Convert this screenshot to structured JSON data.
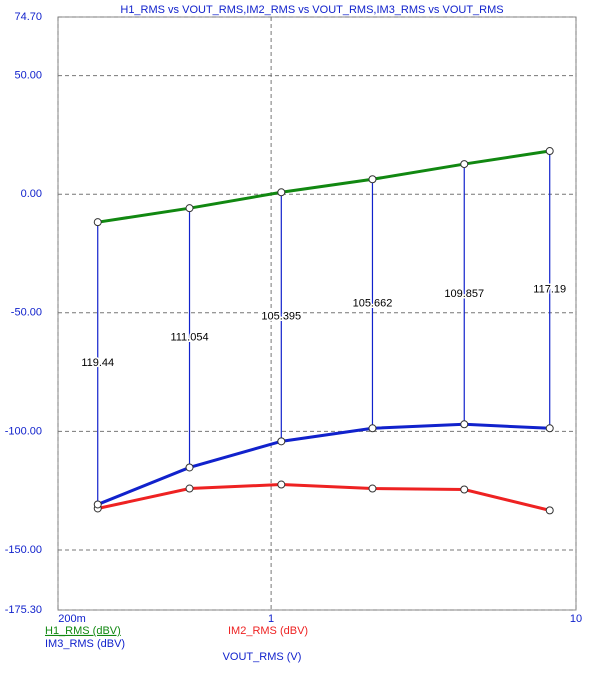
{
  "chart_data": {
    "type": "line",
    "title": "H1_RMS vs VOUT_RMS,IM2_RMS vs VOUT_RMS,IM3_RMS vs VOUT_RMS",
    "x_label": "VOUT_RMS (V)",
    "x_scale": "log",
    "x": [
      0.27,
      0.54,
      1.08,
      2.15,
      4.3,
      8.2
    ],
    "xlim": [
      0.2,
      10
    ],
    "xticks": [
      {
        "value": 0.2,
        "label": "200m"
      },
      1,
      10
    ],
    "ylim": [
      -175.3,
      74.7
    ],
    "yticks": [
      {
        "value": 74.7,
        "label": "74.70"
      },
      {
        "value": 50,
        "label": "50.00"
      },
      {
        "value": 0,
        "label": "0.00"
      },
      {
        "value": -50,
        "label": "-50.00"
      },
      {
        "value": -100,
        "label": "-100.00"
      },
      {
        "value": -150,
        "label": "-150.00"
      },
      {
        "value": -175.3,
        "label": "-175.30"
      }
    ],
    "grid": true,
    "series": [
      {
        "name": "H1_RMS (dBV)",
        "color": "#118811",
        "values": [
          -11.8,
          -5.9,
          0.8,
          6.3,
          12.7,
          18.2
        ]
      },
      {
        "name": "IM2_RMS (dBV)",
        "color": "#ee2222",
        "values": [
          -132.5,
          -124.1,
          -122.4,
          -124.1,
          -124.5,
          -133.3
        ]
      },
      {
        "name": "IM3_RMS (dBV)",
        "color": "#1122cc",
        "values": [
          -130.8,
          -115.2,
          -104.2,
          -98.7,
          -97.0,
          -98.7
        ]
      }
    ],
    "differences": [
      119.44,
      111.054,
      105.395,
      105.662,
      109.857,
      117.19
    ]
  }
}
